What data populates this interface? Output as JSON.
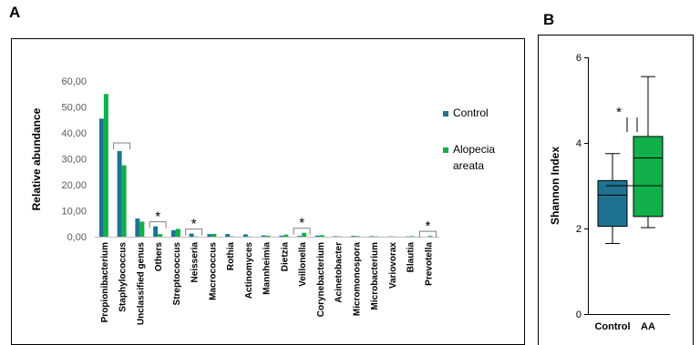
{
  "panels": {
    "a": "A",
    "b": "B"
  },
  "chart_data": [
    {
      "type": "bar",
      "panel": "A",
      "ylabel": "Relative abundance",
      "ylim": [
        0,
        60
      ],
      "yticks": [
        "0,00",
        "10,00",
        "20,00",
        "30,00",
        "40,00",
        "50,00",
        "60,00"
      ],
      "grid": false,
      "legend_position": "right",
      "categories": [
        "Propionibacterium",
        "Staphylococcus",
        "Unclassified genus",
        "Others",
        "Streptococcus",
        "Neisseria",
        "Macrococcus",
        "Rothia",
        "Actinomyces",
        "Mannheimia",
        "Dietzia",
        "Veillonella",
        "Corynebacterium",
        "Acinetobacter",
        "Micromonospora",
        "Microbacterium",
        "Variovorax",
        "Blautia",
        "Prevotella"
      ],
      "series": [
        {
          "name": "Control",
          "color": "#1F7391",
          "values": [
            45.5,
            33.0,
            7.0,
            4.0,
            2.5,
            1.2,
            1.0,
            1.0,
            0.9,
            0.5,
            0.4,
            0.3,
            0.4,
            0.2,
            0.3,
            0.2,
            0.1,
            0.1,
            0.0
          ]
        },
        {
          "name": "Alopecia areata",
          "color": "#11B04A",
          "values": [
            55.0,
            27.5,
            5.8,
            1.0,
            3.0,
            0.1,
            1.1,
            0.1,
            0.1,
            0.4,
            0.8,
            1.5,
            0.6,
            0.1,
            0.2,
            0.1,
            0.1,
            0.2,
            0.3
          ]
        }
      ],
      "significance": [
        {
          "category": "Staphylococcus",
          "marker": ""
        },
        {
          "category": "Others",
          "marker": "*"
        },
        {
          "category": "Neisseria",
          "marker": "*"
        },
        {
          "category": "Veillonella",
          "marker": "*"
        },
        {
          "category": "Prevotella",
          "marker": "*"
        }
      ]
    },
    {
      "type": "box",
      "panel": "B",
      "ylabel": "Shannon Index",
      "ylim": [
        0,
        6
      ],
      "yticks": [
        "0",
        "2",
        "4",
        "6"
      ],
      "categories": [
        "Control",
        "AA"
      ],
      "boxes": [
        {
          "name": "Control",
          "color": "#1F7391",
          "min": 1.65,
          "q1": 2.05,
          "median": 2.78,
          "q3": 3.12,
          "max": 3.75
        },
        {
          "name": "AA",
          "color": "#11B04A",
          "min": 2.02,
          "q1": 2.28,
          "median": 3.65,
          "q3": 4.15,
          "max": 5.55
        }
      ],
      "significance": "*"
    }
  ]
}
